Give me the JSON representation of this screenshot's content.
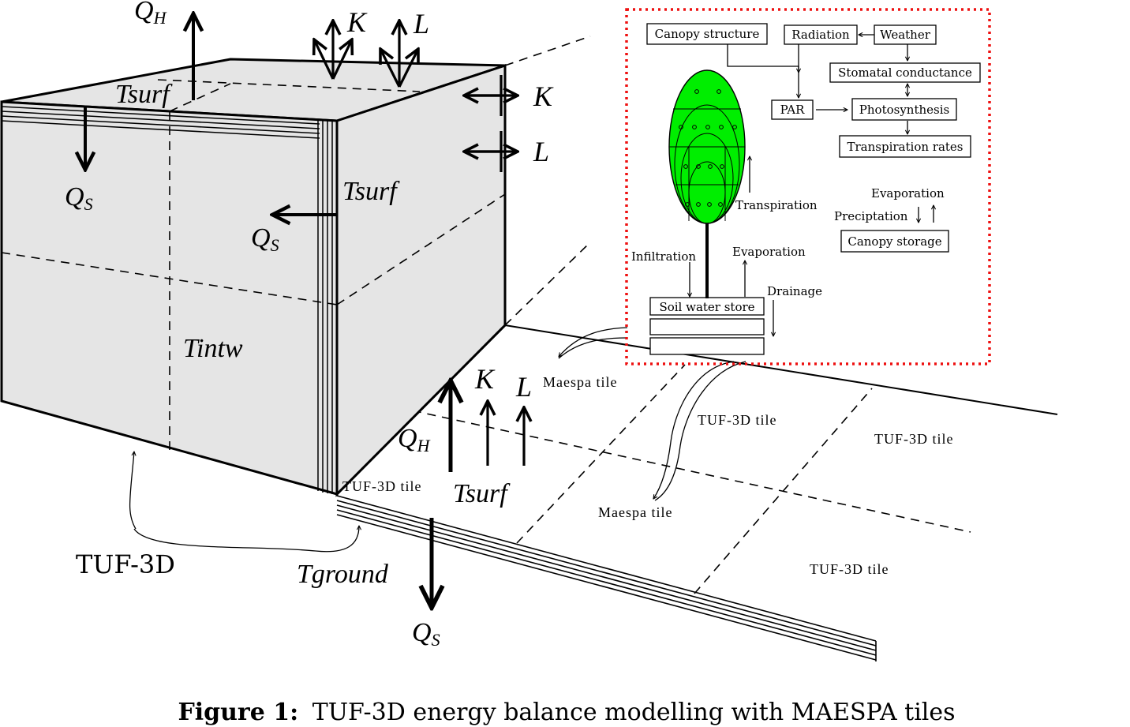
{
  "labels": {
    "qh_top": "Q",
    "qh_top_sub": "H",
    "k_top": "K",
    "l_top": "L",
    "k_side": "K",
    "l_side": "L",
    "tsurf_roof": "Tsurf",
    "tsurf_wall": "Tsurf",
    "qs_roof": "Q",
    "qs_roof_sub": "S",
    "qs_wall": "Q",
    "qs_wall_sub": "S",
    "tintw": "Tintw",
    "tuf3d_brace": "TUF-3D",
    "tground": "Tground",
    "qs_ground": "Q",
    "qs_ground_sub": "S",
    "qh_ground": "Q",
    "qh_ground_sub": "H",
    "k_ground": "K",
    "l_ground": "L",
    "tsurf_ground": "Tsurf",
    "tile_corner": "TUF-3D tile",
    "tile_1": "TUF-3D tile",
    "tile_2": "TUF-3D tile",
    "tile_3": "TUF-3D tile",
    "maespa_tile_1": "Maespa tile",
    "maespa_tile_2": "Maespa tile"
  },
  "maespa_panel": {
    "canopy_structure": "Canopy structure",
    "radiation": "Radiation",
    "weather": "Weather",
    "stomatal_conductance": "Stomatal conductance",
    "par": "PAR",
    "photosynthesis": "Photosynthesis",
    "transpiration_rates": "Transpiration rates",
    "transpiration": "Transpiration",
    "evaporation_canopy": "Evaporation",
    "preciptation": "Preciptation",
    "canopy_storage": "Canopy storage",
    "infiltration": "Infiltration",
    "evaporation_soil": "Evaporation",
    "drainage": "Drainage",
    "soil_water_store": "Soil water store"
  },
  "caption": {
    "prefix": "Figure 1:",
    "text": "TUF-3D energy balance modelling with MAESPA tiles"
  },
  "colors": {
    "canopy_green": "#00ee00",
    "building_fill": "#e5e5e5",
    "panel_border": "#ee1111"
  }
}
